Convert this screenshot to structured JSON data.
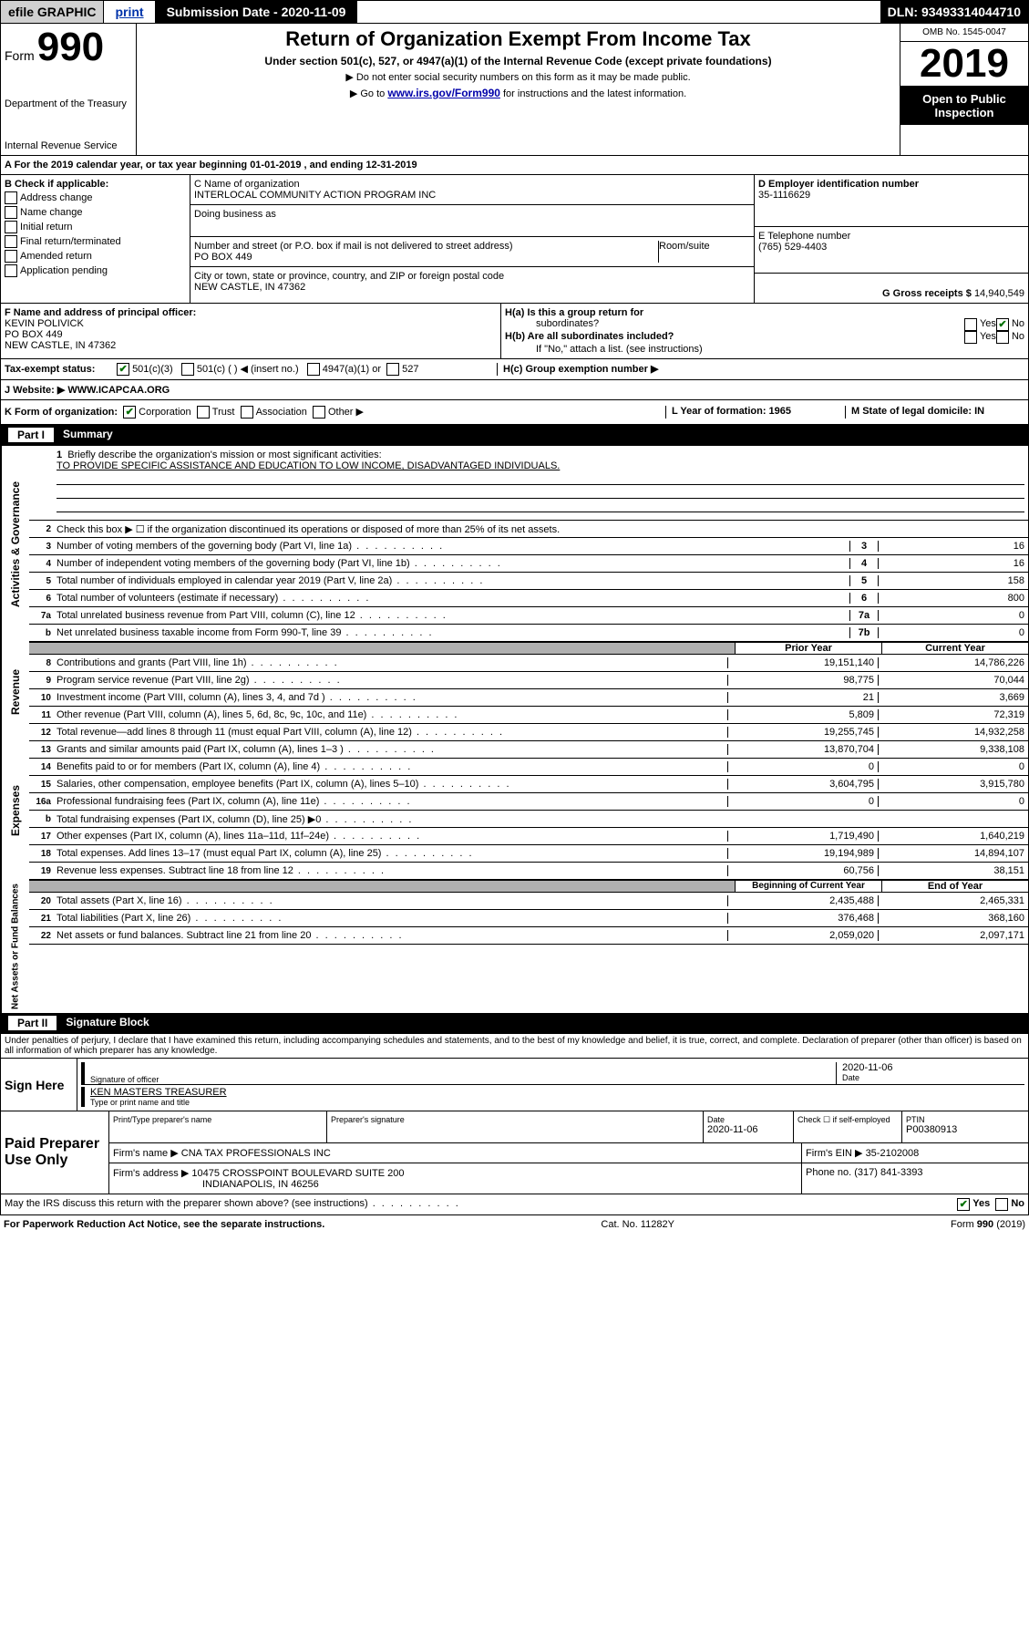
{
  "topbar": {
    "efile": "efile GRAPHIC",
    "print": "print",
    "subdate": "Submission Date - 2020-11-09",
    "dln": "DLN: 93493314044710"
  },
  "header": {
    "form_word": "Form",
    "form_num": "990",
    "dept": "Department of the Treasury",
    "irs": "Internal Revenue Service",
    "title": "Return of Organization Exempt From Income Tax",
    "subtitle": "Under section 501(c), 527, or 4947(a)(1) of the Internal Revenue Code (except private foundations)",
    "caution1": "▶ Do not enter social security numbers on this form as it may be made public.",
    "caution2_pre": "▶ Go to ",
    "caution2_link": "www.irs.gov/Form990",
    "caution2_post": " for instructions and the latest information.",
    "omb": "OMB No. 1545-0047",
    "year": "2019",
    "open": "Open to Public Inspection"
  },
  "A": {
    "line": "A For the 2019 calendar year, or tax year beginning 01-01-2019     , and ending 12-31-2019"
  },
  "B": {
    "label": "B Check if applicable:",
    "opts": [
      "Address change",
      "Name change",
      "Initial return",
      "Final return/terminated",
      "Amended return",
      "Application pending"
    ]
  },
  "CDE": {
    "c_label": "C Name of organization",
    "c_name": "INTERLOCAL COMMUNITY ACTION PROGRAM INC",
    "dba": "Doing business as",
    "street_label": "Number and street (or P.O. box if mail is not delivered to street address)",
    "street": "PO BOX 449",
    "room": "Room/suite",
    "city_label": "City or town, state or province, country, and ZIP or foreign postal code",
    "city": "NEW CASTLE, IN  47362",
    "d_label": "D Employer identification number",
    "d_val": "35-1116629",
    "e_label": "E Telephone number",
    "e_val": "(765) 529-4403",
    "g_label": "G Gross receipts $",
    "g_val": "14,940,549"
  },
  "F": {
    "label": "F  Name and address of principal officer:",
    "name": "KEVIN POLIVICK",
    "street": "PO BOX 449",
    "city": "NEW CASTLE, IN  47362"
  },
  "H": {
    "a": "H(a)  Is this a group return for",
    "a2": "subordinates?",
    "b": "H(b)  Are all subordinates included?",
    "b2": "If \"No,\" attach a list. (see instructions)",
    "c": "H(c)  Group exemption number ▶",
    "yes": "Yes",
    "no": "No"
  },
  "I": {
    "label": "Tax-exempt status:",
    "opts": [
      "501(c)(3)",
      "501(c) (  ) ◀ (insert no.)",
      "4947(a)(1) or",
      "527"
    ]
  },
  "J": {
    "label": "J Website: ▶",
    "val": "WWW.ICAPCAA.ORG"
  },
  "K": {
    "label": "K Form of organization:",
    "opts": [
      "Corporation",
      "Trust",
      "Association",
      "Other ▶"
    ],
    "L": "L Year of formation: 1965",
    "M": "M State of legal domicile: IN"
  },
  "partI": {
    "label": "Part I",
    "title": "Summary"
  },
  "summary": {
    "side_gov": "Activities & Governance",
    "side_rev": "Revenue",
    "side_exp": "Expenses",
    "side_net": "Net Assets or Fund Balances",
    "l1_label": "Briefly describe the organization's mission or most significant activities:",
    "l1_text": "TO PROVIDE SPECIFIC ASSISTANCE AND EDUCATION TO LOW INCOME, DISADVANTAGED INDIVIDUALS.",
    "l2": "Check this box ▶ ☐ if the organization discontinued its operations or disposed of more than 25% of its net assets.",
    "lines_gov": [
      {
        "n": "3",
        "d": "Number of voting members of the governing body (Part VI, line 1a)",
        "t": "3",
        "v": "16"
      },
      {
        "n": "4",
        "d": "Number of independent voting members of the governing body (Part VI, line 1b)",
        "t": "4",
        "v": "16"
      },
      {
        "n": "5",
        "d": "Total number of individuals employed in calendar year 2019 (Part V, line 2a)",
        "t": "5",
        "v": "158"
      },
      {
        "n": "6",
        "d": "Total number of volunteers (estimate if necessary)",
        "t": "6",
        "v": "800"
      },
      {
        "n": "7a",
        "d": "Total unrelated business revenue from Part VIII, column (C), line 12",
        "t": "7a",
        "v": "0"
      },
      {
        "n": "b",
        "d": "Net unrelated business taxable income from Form 990-T, line 39",
        "t": "7b",
        "v": "0"
      }
    ],
    "head_prior": "Prior Year",
    "head_current": "Current Year",
    "lines_rev": [
      {
        "n": "8",
        "d": "Contributions and grants (Part VIII, line 1h)",
        "p": "19,151,140",
        "c": "14,786,226"
      },
      {
        "n": "9",
        "d": "Program service revenue (Part VIII, line 2g)",
        "p": "98,775",
        "c": "70,044"
      },
      {
        "n": "10",
        "d": "Investment income (Part VIII, column (A), lines 3, 4, and 7d )",
        "p": "21",
        "c": "3,669"
      },
      {
        "n": "11",
        "d": "Other revenue (Part VIII, column (A), lines 5, 6d, 8c, 9c, 10c, and 11e)",
        "p": "5,809",
        "c": "72,319"
      },
      {
        "n": "12",
        "d": "Total revenue—add lines 8 through 11 (must equal Part VIII, column (A), line 12)",
        "p": "19,255,745",
        "c": "14,932,258"
      }
    ],
    "lines_exp": [
      {
        "n": "13",
        "d": "Grants and similar amounts paid (Part IX, column (A), lines 1–3 )",
        "p": "13,870,704",
        "c": "9,338,108"
      },
      {
        "n": "14",
        "d": "Benefits paid to or for members (Part IX, column (A), line 4)",
        "p": "0",
        "c": "0"
      },
      {
        "n": "15",
        "d": "Salaries, other compensation, employee benefits (Part IX, column (A), lines 5–10)",
        "p": "3,604,795",
        "c": "3,915,780"
      },
      {
        "n": "16a",
        "d": "Professional fundraising fees (Part IX, column (A), line 11e)",
        "p": "0",
        "c": "0"
      },
      {
        "n": "b",
        "d": "Total fundraising expenses (Part IX, column (D), line 25) ▶0",
        "p": "",
        "c": ""
      },
      {
        "n": "17",
        "d": "Other expenses (Part IX, column (A), lines 11a–11d, 11f–24e)",
        "p": "1,719,490",
        "c": "1,640,219"
      },
      {
        "n": "18",
        "d": "Total expenses. Add lines 13–17 (must equal Part IX, column (A), line 25)",
        "p": "19,194,989",
        "c": "14,894,107"
      },
      {
        "n": "19",
        "d": "Revenue less expenses. Subtract line 18 from line 12",
        "p": "60,756",
        "c": "38,151"
      }
    ],
    "head_begin": "Beginning of Current Year",
    "head_end": "End of Year",
    "lines_net": [
      {
        "n": "20",
        "d": "Total assets (Part X, line 16)",
        "p": "2,435,488",
        "c": "2,465,331"
      },
      {
        "n": "21",
        "d": "Total liabilities (Part X, line 26)",
        "p": "376,468",
        "c": "368,160"
      },
      {
        "n": "22",
        "d": "Net assets or fund balances. Subtract line 21 from line 20",
        "p": "2,059,020",
        "c": "2,097,171"
      }
    ]
  },
  "partII": {
    "label": "Part II",
    "title": "Signature Block",
    "declaration": "Under penalties of perjury, I declare that I have examined this return, including accompanying schedules and statements, and to the best of my knowledge and belief, it is true, correct, and complete. Declaration of preparer (other than officer) is based on all information of which preparer has any knowledge."
  },
  "sign": {
    "label": "Sign Here",
    "sig_l": "Signature of officer",
    "date": "2020-11-06",
    "date_l": "Date",
    "name": "KEN MASTERS TREASURER",
    "name_l": "Type or print name and title"
  },
  "paid": {
    "label": "Paid Preparer Use Only",
    "h1": "Print/Type preparer's name",
    "h2": "Preparer's signature",
    "h3": "Date",
    "h3v": "2020-11-06",
    "h4": "Check ☐ if self-employed",
    "h5": "PTIN",
    "h5v": "P00380913",
    "fn_l": "Firm's name    ▶",
    "fn": "CNA TAX PROFESSIONALS INC",
    "fein_l": "Firm's EIN ▶",
    "fein": "35-2102008",
    "fa_l": "Firm's address ▶",
    "fa": "10475 CROSSPOINT BOULEVARD SUITE 200",
    "fa2": "INDIANAPOLIS, IN  46256",
    "ph_l": "Phone no.",
    "ph": "(317) 841-3393"
  },
  "discuss": {
    "q": "May the IRS discuss this return with the preparer shown above? (see instructions)",
    "yes": "Yes",
    "no": "No"
  },
  "footer": {
    "l": "For Paperwork Reduction Act Notice, see the separate instructions.",
    "m": "Cat. No. 11282Y",
    "r": "Form 990 (2019)"
  }
}
